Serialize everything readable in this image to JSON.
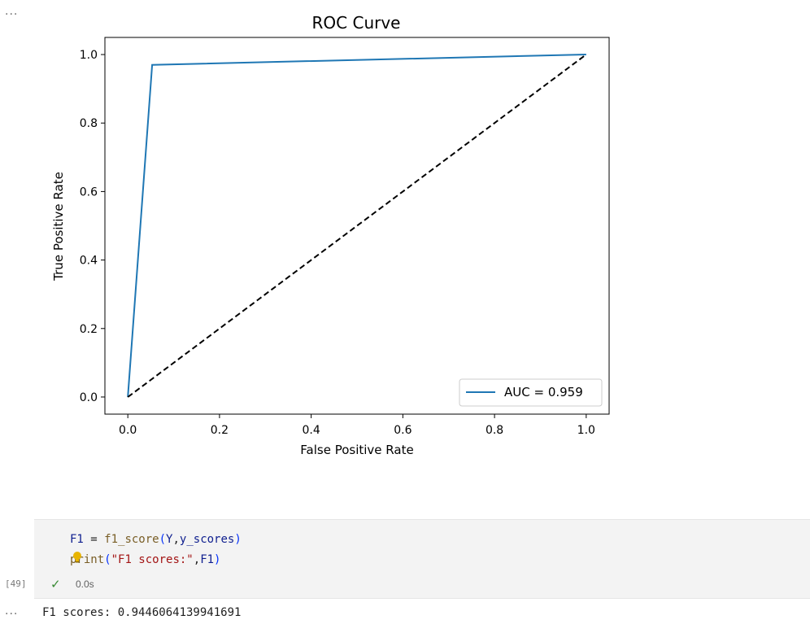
{
  "top_output_ellipsis": "...",
  "chart_data": {
    "type": "line",
    "title": "ROC Curve",
    "xlabel": "False Positive Rate",
    "ylabel": "True Positive Rate",
    "xlim": [
      -0.05,
      1.05
    ],
    "ylim": [
      -0.05,
      1.05
    ],
    "xticks": [
      0.0,
      0.2,
      0.4,
      0.6,
      0.8,
      1.0
    ],
    "yticks": [
      0.0,
      0.2,
      0.4,
      0.6,
      0.8,
      1.0
    ],
    "xtick_labels": [
      "0.0",
      "0.2",
      "0.4",
      "0.6",
      "0.8",
      "1.0"
    ],
    "ytick_labels": [
      "0.0",
      "0.2",
      "0.4",
      "0.6",
      "0.8",
      "1.0"
    ],
    "grid": false,
    "legend_position": "lower-right",
    "series": [
      {
        "name": "AUC = 0.959",
        "style": "solid",
        "color": "#1f77b4",
        "x": [
          0.0,
          0.053,
          1.0
        ],
        "y": [
          0.0,
          0.97,
          1.0
        ]
      },
      {
        "style": "dashed",
        "color": "#000000",
        "x": [
          0.0,
          1.0
        ],
        "y": [
          0.0,
          1.0
        ]
      }
    ]
  },
  "code_cell": {
    "lines": [
      [
        {
          "t": "F1",
          "c": "var"
        },
        {
          "t": " = ",
          "c": "op"
        },
        {
          "t": "f1_score",
          "c": "func"
        },
        {
          "t": "(",
          "c": "paren"
        },
        {
          "t": "Y",
          "c": "var"
        },
        {
          "t": ",",
          "c": "default"
        },
        {
          "t": "y_scores",
          "c": "var"
        },
        {
          "t": ")",
          "c": "paren"
        }
      ],
      [
        {
          "t": "print",
          "c": "func"
        },
        {
          "t": "(",
          "c": "paren"
        },
        {
          "t": "\"F1 scores:\"",
          "c": "str"
        },
        {
          "t": ",",
          "c": "default"
        },
        {
          "t": "F1",
          "c": "var"
        },
        {
          "t": ")",
          "c": "paren"
        }
      ]
    ],
    "execution_count": "[49]",
    "status_icon": "check-icon",
    "exec_time": "0.0s"
  },
  "output": {
    "ellipsis": "...",
    "text": "F1 scores: 0.9446064139941691"
  },
  "colors": {
    "roc_line": "#1f77b4",
    "diagonal": "#000000",
    "check": "#388a34",
    "bulb": "#e8b400"
  }
}
